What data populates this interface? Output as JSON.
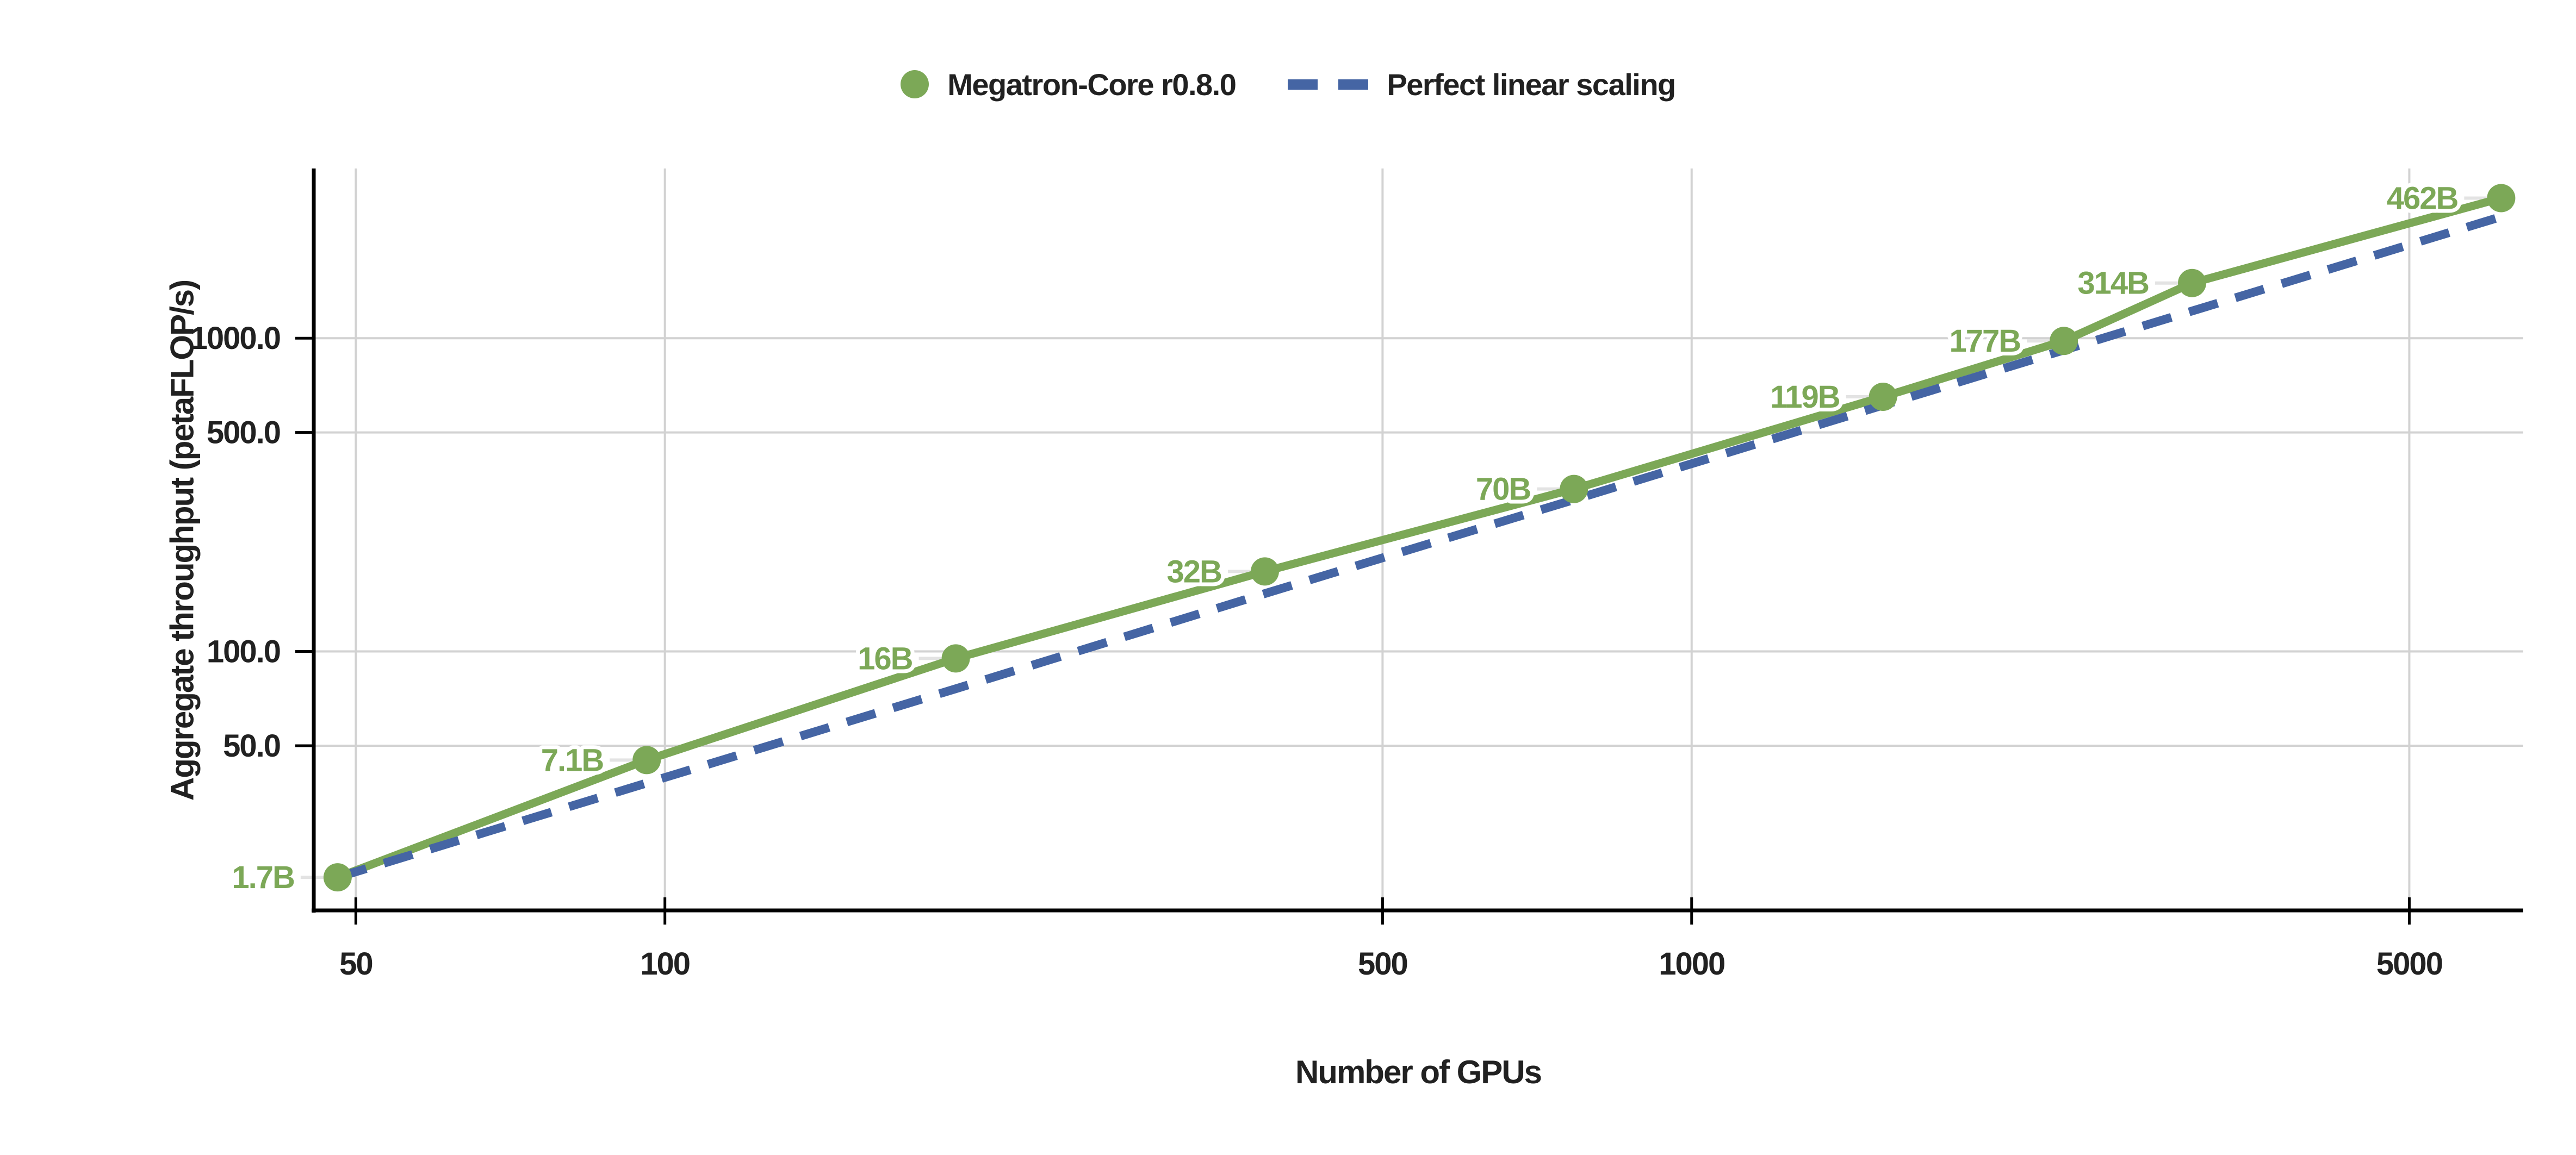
{
  "legend": {
    "items": [
      {
        "label": "Megatron-Core r0.8.0",
        "marker": "circle",
        "color": "#7CA857"
      },
      {
        "label": "Perfect linear scaling",
        "marker": "dashes",
        "color": "#4565A4"
      }
    ]
  },
  "chart_data": {
    "type": "line",
    "title": "",
    "xlabel": "Number of GPUs",
    "ylabel": "Aggregate throughput (petaFLOP/s)",
    "x_scale": "log",
    "y_scale": "log",
    "x": [
      48,
      96,
      192,
      384,
      768,
      1536,
      2304,
      3072,
      6144
    ],
    "series": [
      {
        "name": "Megatron-Core r0.8.0",
        "color": "#7CA857",
        "style": "solid",
        "markers": true,
        "values": [
          19,
          45,
          95,
          180,
          330,
          650,
          980,
          1500,
          2800
        ],
        "point_labels": [
          "1.7B",
          "7.1B",
          "16B",
          "32B",
          "70B",
          "119B",
          "177B",
          "314B",
          "462B"
        ]
      },
      {
        "name": "Perfect linear scaling",
        "color": "#4565A4",
        "style": "dashed",
        "markers": false,
        "values": [
          19,
          38,
          76,
          153,
          305,
          611,
          916,
          1221,
          2442
        ]
      }
    ],
    "x_ticks": [
      {
        "value": 50,
        "label": "50"
      },
      {
        "value": 100,
        "label": "100"
      },
      {
        "value": 500,
        "label": "500"
      },
      {
        "value": 1000,
        "label": "1000"
      },
      {
        "value": 5000,
        "label": "5000"
      }
    ],
    "y_ticks": [
      {
        "value": 50,
        "label": "50.0"
      },
      {
        "value": 100,
        "label": "100.0"
      },
      {
        "value": 500,
        "label": "500.0"
      },
      {
        "value": 1000,
        "label": "1000.0"
      }
    ],
    "xlim": [
      45.5,
      6456
    ],
    "ylim": [
      14.9,
      3481
    ],
    "grid": true,
    "legend_position": "top-center",
    "colors": {
      "grid": "#D2D2D2",
      "axis": "#000000",
      "text": "#212121",
      "leader": "#E3E3E3"
    }
  }
}
